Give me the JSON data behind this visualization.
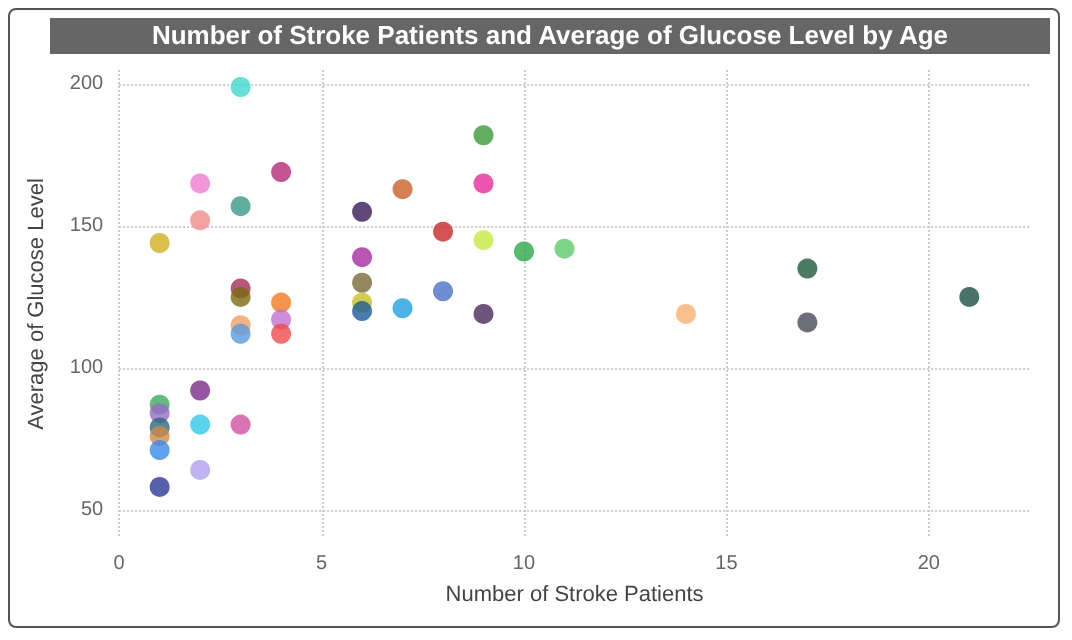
{
  "chart_data": {
    "type": "scatter",
    "title": "Number of Stroke Patients and Average of Glucose Level by Age",
    "xlabel": "Number of Stroke Patients",
    "ylabel": "Average of Glucose Level",
    "x": [
      3,
      9,
      4,
      2,
      9,
      7,
      3,
      6,
      2,
      8,
      1,
      9,
      10,
      11,
      6,
      17,
      6,
      3,
      3,
      8,
      21,
      4,
      6,
      6,
      7,
      14,
      9,
      17,
      4,
      3,
      3,
      4,
      2,
      1,
      1,
      3,
      2,
      1,
      1,
      1,
      2,
      1
    ],
    "values": [
      199,
      182,
      169,
      165,
      165,
      163,
      157,
      155,
      152,
      148,
      144,
      145,
      141,
      142,
      139,
      135,
      130,
      128,
      125,
      127,
      125,
      123,
      123,
      120,
      121,
      119,
      119,
      116,
      117,
      115,
      112,
      112,
      92,
      87,
      84,
      80,
      80,
      79,
      76,
      71,
      64,
      58
    ],
    "colors": [
      "#3dd9c9",
      "#3a9a3a",
      "#b52a7a",
      "#f07ad0",
      "#e82a9a",
      "#c8602a",
      "#3a9a8a",
      "#3a1a5a",
      "#f08a8a",
      "#c8282a",
      "#d0b020",
      "#c8e840",
      "#2aa84a",
      "#5acc6a",
      "#a82aa0",
      "#1e5a3a",
      "#7a6a3a",
      "#a0305a",
      "#7a6a10",
      "#4a70c8",
      "#1a5040",
      "#f07a20",
      "#c8c020",
      "#1a5a9a",
      "#20a0e0",
      "#f8b070",
      "#4a2a5a",
      "#4a4a5a",
      "#c070d0",
      "#f0a060",
      "#5a9ae0",
      "#f04a4a",
      "#7a2a8a",
      "#3aaa5a",
      "#9a6ac8",
      "#d050a0",
      "#30c8e8",
      "#2a6a7a",
      "#d08a4a",
      "#3a8ae8",
      "#b0a0f0",
      "#2a3a9a"
    ],
    "xlim": [
      0,
      22.5
    ],
    "xticks": [
      0,
      5,
      10,
      15,
      20
    ],
    "ylim": [
      40,
      205
    ],
    "yticks": [
      50,
      100,
      150,
      200
    ],
    "grid": true,
    "marker": "circle"
  }
}
